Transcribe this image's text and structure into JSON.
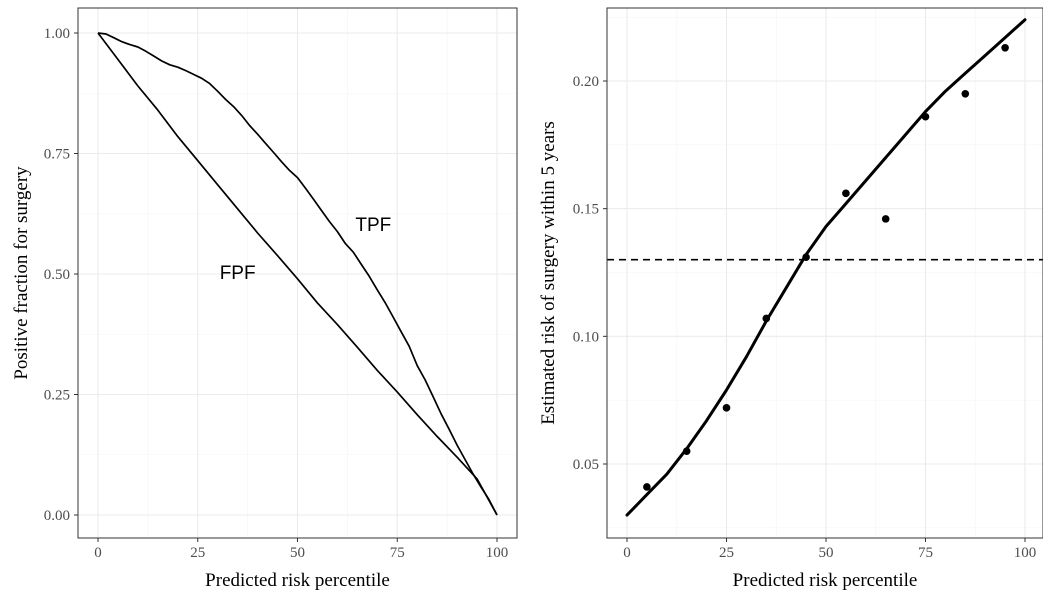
{
  "chart_data": [
    {
      "type": "line",
      "xlabel": "Predicted risk percentile",
      "ylabel": "Positive fraction for surgery",
      "xlim": [
        0,
        100
      ],
      "ylim": [
        0,
        1
      ],
      "x_ticks": [
        0,
        25,
        50,
        75,
        100
      ],
      "x_tick_labels": [
        "0",
        "25",
        "50",
        "75",
        "100"
      ],
      "y_ticks": [
        0,
        0.25,
        0.5,
        0.75,
        1
      ],
      "y_tick_labels": [
        "0.00",
        "0.25",
        "0.50",
        "0.75",
        "1.00"
      ],
      "grid": true,
      "series": [
        {
          "name": "TPF",
          "x": [
            0,
            2,
            4,
            6,
            8,
            10,
            12,
            14,
            16,
            18,
            20,
            22,
            24,
            26,
            28,
            30,
            32,
            34,
            36,
            38,
            40,
            42,
            44,
            46,
            48,
            50,
            52,
            54,
            56,
            58,
            60,
            62,
            64,
            66,
            68,
            70,
            72,
            74,
            76,
            78,
            80,
            82,
            84,
            86,
            88,
            90,
            92,
            94,
            96,
            98,
            100
          ],
          "y": [
            1.0,
            0.998,
            0.99,
            0.982,
            0.976,
            0.971,
            0.962,
            0.952,
            0.942,
            0.934,
            0.929,
            0.922,
            0.914,
            0.906,
            0.895,
            0.879,
            0.862,
            0.847,
            0.829,
            0.808,
            0.79,
            0.771,
            0.752,
            0.733,
            0.715,
            0.7,
            0.678,
            0.655,
            0.632,
            0.609,
            0.588,
            0.563,
            0.545,
            0.52,
            0.495,
            0.467,
            0.44,
            0.41,
            0.38,
            0.35,
            0.31,
            0.28,
            0.245,
            0.21,
            0.178,
            0.145,
            0.115,
            0.085,
            0.058,
            0.032,
            0.0
          ]
        },
        {
          "name": "FPF",
          "x": [
            0,
            5,
            10,
            15,
            20,
            25,
            30,
            35,
            40,
            45,
            50,
            55,
            60,
            65,
            70,
            75,
            80,
            85,
            90,
            95,
            100
          ],
          "y": [
            1.0,
            0.945,
            0.89,
            0.84,
            0.785,
            0.735,
            0.685,
            0.635,
            0.585,
            0.538,
            0.49,
            0.44,
            0.395,
            0.348,
            0.3,
            0.255,
            0.208,
            0.163,
            0.12,
            0.075,
            0.0
          ]
        }
      ],
      "annotations": [
        {
          "text": "TPF",
          "x": 69,
          "y": 0.6
        },
        {
          "text": "FPF",
          "x": 35,
          "y": 0.5
        }
      ]
    },
    {
      "type": "scatter",
      "xlabel": "Predicted risk percentile",
      "ylabel": "Estimated risk of surgery within 5 years",
      "xlim": [
        0,
        100
      ],
      "ylim": [
        0.0285,
        0.2275
      ],
      "x_ticks": [
        0,
        25,
        50,
        75,
        100
      ],
      "x_tick_labels": [
        "0",
        "25",
        "50",
        "75",
        "100"
      ],
      "y_ticks": [
        0.05,
        0.1,
        0.15,
        0.2
      ],
      "y_tick_labels": [
        "0.05",
        "0.10",
        "0.15",
        "0.20"
      ],
      "grid": true,
      "points": {
        "x": [
          5,
          15,
          25,
          35,
          45,
          55,
          65,
          75,
          85,
          95
        ],
        "y": [
          0.041,
          0.055,
          0.072,
          0.107,
          0.131,
          0.156,
          0.146,
          0.186,
          0.195,
          0.213
        ]
      },
      "smooth_line": {
        "x": [
          0,
          5,
          10,
          15,
          20,
          25,
          30,
          35,
          40,
          45,
          50,
          55,
          60,
          65,
          70,
          75,
          80,
          85,
          90,
          95,
          100
        ],
        "y": [
          0.03,
          0.038,
          0.046,
          0.056,
          0.067,
          0.079,
          0.092,
          0.106,
          0.119,
          0.132,
          0.143,
          0.152,
          0.161,
          0.17,
          0.179,
          0.188,
          0.196,
          0.203,
          0.21,
          0.217,
          0.224
        ]
      },
      "reference_line": {
        "y": 0.13,
        "style": "dashed"
      }
    }
  ]
}
